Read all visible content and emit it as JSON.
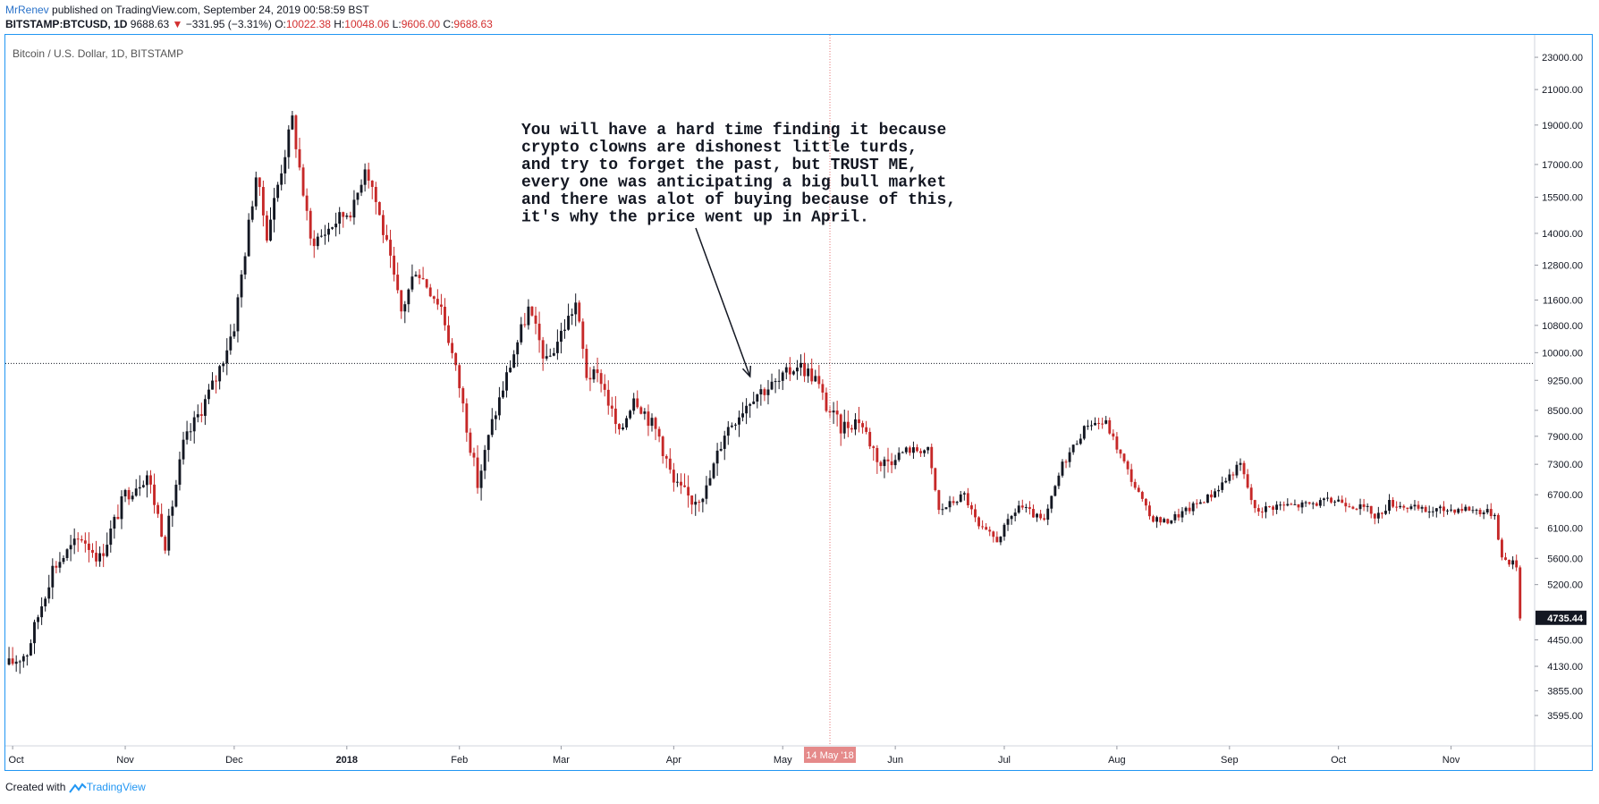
{
  "header": {
    "author": "MrRenev",
    "published_text": "published on TradingView.com, September 24, 2019 00:58:59 BST",
    "symbol": "BITSTAMP:BTCUSD, 1D",
    "last": "9688.63",
    "down_arrow": "▼",
    "change": "−331.95 (−3.31%)",
    "o_label": "O:",
    "o_value": "10022.38",
    "h_label": "H:",
    "h_value": "10048.06",
    "l_label": "L:",
    "l_value": "9606.00",
    "c_label": "C:",
    "c_value": "9688.63"
  },
  "colors": {
    "up": "#131722",
    "down": "#c62828",
    "frame": "#2196f3",
    "brand": "#2196f3",
    "price_tag_bg": "#131722",
    "date_tag_bg": "#e58a8a",
    "crosshair_v": "#e57373"
  },
  "chart_data": {
    "type": "candlestick",
    "title": "Bitcoin / U.S. Dollar, 1D, BITSTAMP",
    "y_scale": "log",
    "ylim": [
      3300,
      24500
    ],
    "y_ticks": [
      "23000.00",
      "21000.00",
      "19000.00",
      "17000.00",
      "15500.00",
      "14000.00",
      "12800.00",
      "11600.00",
      "10800.00",
      "10000.00",
      "9250.00",
      "8500.00",
      "7900.00",
      "7300.00",
      "6700.00",
      "6100.00",
      "5600.00",
      "5200.00",
      "4450.00",
      "4130.00",
      "3855.00",
      "3595.00"
    ],
    "x_ticks": [
      "Oct",
      "Nov",
      "Dec",
      "2018",
      "Feb",
      "Mar",
      "Apr",
      "May",
      "Jun",
      "Jul",
      "Aug",
      "Sep",
      "Oct",
      "Nov"
    ],
    "x_range": [
      "2017-09-29",
      "2018-11-24"
    ],
    "last_price_label": "4735.44",
    "last_price": 4735.44,
    "crosshair_date_label": "14 May '18",
    "crosshair_date": "2018-05-14",
    "crosshair_price": 9700,
    "annotation": {
      "lines": [
        "You will have a hard time finding it because",
        "crypto clowns are dishonest little turds,",
        "and try to forget the past, but TRUST ME,",
        "every one was anticipating a big bull market",
        "and there was alot of buying because of this,",
        "it's why the price went up in April."
      ],
      "arrow_to_date": "2018-04-22",
      "arrow_to_price": 9350
    },
    "price_path": [
      [
        "2017-09-30",
        4150
      ],
      [
        "2017-10-05",
        4300
      ],
      [
        "2017-10-12",
        5450
      ],
      [
        "2017-10-20",
        5950
      ],
      [
        "2017-10-25",
        5600
      ],
      [
        "2017-11-01",
        6700
      ],
      [
        "2017-11-07",
        7100
      ],
      [
        "2017-11-12",
        5850
      ],
      [
        "2017-11-17",
        7700
      ],
      [
        "2017-11-26",
        9300
      ],
      [
        "2017-12-01",
        10800
      ],
      [
        "2017-12-07",
        16500
      ],
      [
        "2017-12-10",
        14000
      ],
      [
        "2017-12-17",
        19300
      ],
      [
        "2017-12-22",
        13700
      ],
      [
        "2017-12-25",
        13900
      ],
      [
        "2017-12-29",
        14500
      ],
      [
        "2018-01-03",
        15100
      ],
      [
        "2018-01-06",
        17000
      ],
      [
        "2018-01-08",
        16000
      ],
      [
        "2018-01-12",
        13500
      ],
      [
        "2018-01-16",
        11200
      ],
      [
        "2018-01-20",
        12700
      ],
      [
        "2018-01-27",
        11400
      ],
      [
        "2018-02-01",
        9100
      ],
      [
        "2018-02-06",
        6900
      ],
      [
        "2018-02-10",
        8200
      ],
      [
        "2018-02-16",
        10000
      ],
      [
        "2018-02-20",
        11300
      ],
      [
        "2018-02-25",
        9700
      ],
      [
        "2018-03-05",
        11500
      ],
      [
        "2018-03-08",
        9400
      ],
      [
        "2018-03-12",
        9300
      ],
      [
        "2018-03-17",
        7900
      ],
      [
        "2018-03-21",
        8900
      ],
      [
        "2018-03-28",
        7900
      ],
      [
        "2018-04-01",
        6900
      ],
      [
        "2018-04-06",
        6600
      ],
      [
        "2018-04-10",
        6800
      ],
      [
        "2018-04-15",
        8000
      ],
      [
        "2018-04-23",
        8900
      ],
      [
        "2018-04-30",
        9200
      ],
      [
        "2018-05-05",
        9700
      ],
      [
        "2018-05-10",
        9300
      ],
      [
        "2018-05-13",
        8600
      ],
      [
        "2018-05-17",
        8100
      ],
      [
        "2018-05-22",
        8300
      ],
      [
        "2018-05-28",
        7300
      ],
      [
        "2018-06-04",
        7600
      ],
      [
        "2018-06-10",
        7600
      ],
      [
        "2018-06-13",
        6400
      ],
      [
        "2018-06-20",
        6700
      ],
      [
        "2018-06-24",
        6100
      ],
      [
        "2018-06-29",
        5900
      ],
      [
        "2018-07-05",
        6500
      ],
      [
        "2018-07-12",
        6200
      ],
      [
        "2018-07-17",
        7300
      ],
      [
        "2018-07-24",
        8200
      ],
      [
        "2018-07-29",
        8200
      ],
      [
        "2018-08-05",
        7000
      ],
      [
        "2018-08-10",
        6300
      ],
      [
        "2018-08-14",
        6200
      ],
      [
        "2018-08-20",
        6400
      ],
      [
        "2018-08-27",
        6700
      ],
      [
        "2018-09-04",
        7300
      ],
      [
        "2018-09-08",
        6400
      ],
      [
        "2018-09-14",
        6500
      ],
      [
        "2018-09-20",
        6500
      ],
      [
        "2018-10-01",
        6600
      ],
      [
        "2018-10-10",
        6400
      ],
      [
        "2018-10-11",
        6250
      ],
      [
        "2018-10-15",
        6550
      ],
      [
        "2018-10-25",
        6400
      ],
      [
        "2018-11-05",
        6450
      ],
      [
        "2018-11-13",
        6350
      ],
      [
        "2018-11-15",
        5600
      ],
      [
        "2018-11-19",
        5500
      ],
      [
        "2018-11-20",
        4735
      ]
    ]
  },
  "footer": {
    "created_with": "Created with",
    "brand": "TradingView"
  }
}
